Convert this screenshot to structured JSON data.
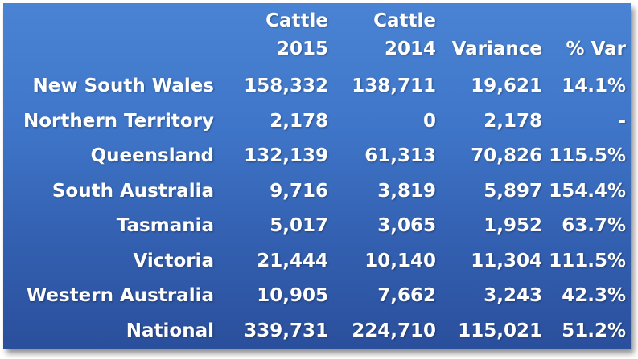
{
  "table": {
    "headers": {
      "region": "",
      "cattle2015": [
        "Cattle",
        "2015"
      ],
      "cattle2014": [
        "Cattle",
        "2014"
      ],
      "variance": "Variance",
      "pct_var": "% Var"
    },
    "rows": [
      {
        "region": "New South Wales",
        "cattle2015": "158,332",
        "cattle2014": "138,711",
        "variance": "19,621",
        "pct_var": "14.1%"
      },
      {
        "region": "Northern Territory",
        "cattle2015": "2,178",
        "cattle2014": "0",
        "variance": "2,178",
        "pct_var": "-"
      },
      {
        "region": "Queensland",
        "cattle2015": "132,139",
        "cattle2014": "61,313",
        "variance": "70,826",
        "pct_var": "115.5%"
      },
      {
        "region": "South Australia",
        "cattle2015": "9,716",
        "cattle2014": "3,819",
        "variance": "5,897",
        "pct_var": "154.4%"
      },
      {
        "region": "Tasmania",
        "cattle2015": "5,017",
        "cattle2014": "3,065",
        "variance": "1,952",
        "pct_var": "63.7%"
      },
      {
        "region": "Victoria",
        "cattle2015": "21,444",
        "cattle2014": "10,140",
        "variance": "11,304",
        "pct_var": "111.5%"
      },
      {
        "region": "Western Australia",
        "cattle2015": "10,905",
        "cattle2014": "7,662",
        "variance": "3,243",
        "pct_var": "42.3%"
      },
      {
        "region": "National",
        "cattle2015": "339,731",
        "cattle2014": "224,710",
        "variance": "115,021",
        "pct_var": "51.2%"
      }
    ]
  },
  "colors": {
    "background_top": "#4a83d4",
    "background_bottom": "#2a4f9c",
    "text": "#ffffff"
  }
}
